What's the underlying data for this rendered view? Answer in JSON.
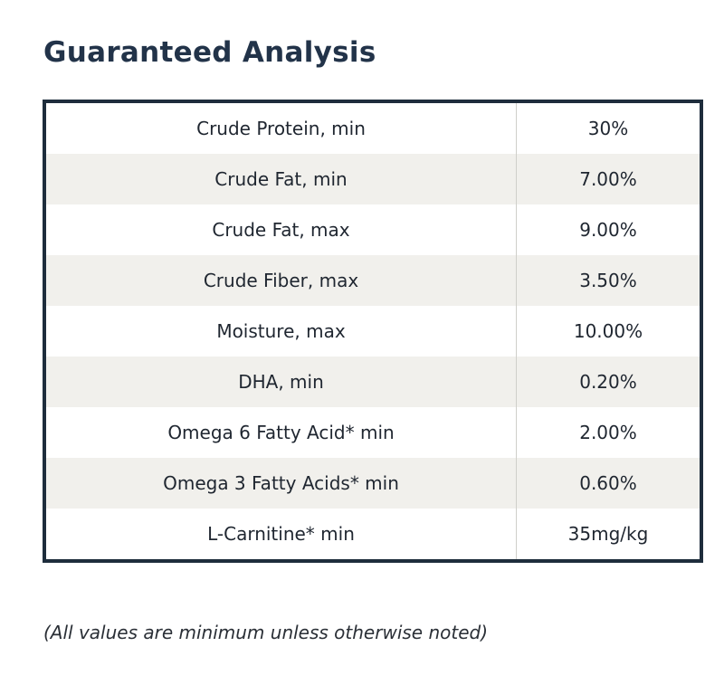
{
  "title": "Guaranteed Analysis",
  "table": {
    "rows": [
      {
        "nutrient": "Crude Protein, min",
        "value": "30%"
      },
      {
        "nutrient": "Crude Fat, min",
        "value": "7.00%"
      },
      {
        "nutrient": "Crude Fat, max",
        "value": "9.00%"
      },
      {
        "nutrient": "Crude Fiber, max",
        "value": "3.50%"
      },
      {
        "nutrient": "Moisture, max",
        "value": "10.00%"
      },
      {
        "nutrient": "DHA, min",
        "value": "0.20%"
      },
      {
        "nutrient": "Omega 6 Fatty Acid* min",
        "value": "2.00%"
      },
      {
        "nutrient": "Omega 3 Fatty Acids* min",
        "value": "0.60%"
      },
      {
        "nutrient": "L-Carnitine* min",
        "value": "35mg/kg"
      }
    ]
  },
  "footnote": "(All values are minimum unless otherwise noted)",
  "colors": {
    "title": "#223349",
    "border": "#1e2d3c",
    "row_alt": "#f1f0ec"
  }
}
